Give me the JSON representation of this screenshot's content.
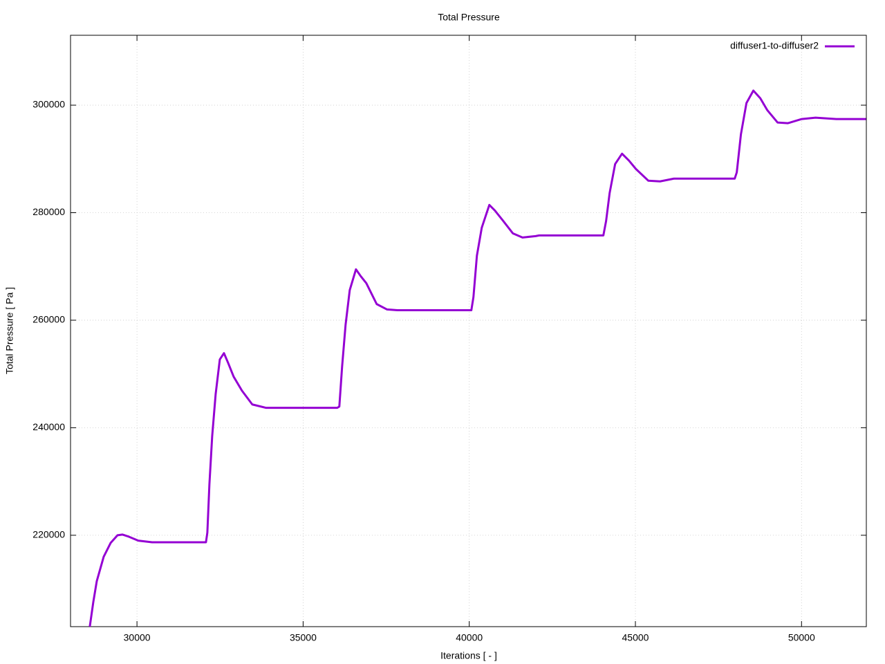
{
  "chart_data": {
    "type": "line",
    "title": "Total Pressure",
    "x_label": "Iterations [ - ]",
    "y_label": "Total Pressure [ Pa ]",
    "xlim": [
      28000,
      51950
    ],
    "ylim": [
      203000,
      313000
    ],
    "xticks": [
      30000,
      35000,
      40000,
      45000,
      50000
    ],
    "yticks": [
      220000,
      240000,
      260000,
      280000,
      300000
    ],
    "grid": true,
    "legend": "top-right",
    "x": [
      28580,
      28686,
      28790,
      28998,
      29206,
      29414,
      29560,
      29726,
      30038,
      30454,
      31286,
      32076,
      32118,
      32180,
      32264,
      32368,
      32493,
      32618,
      32743,
      32909,
      33158,
      33470,
      33886,
      36028,
      36090,
      36174,
      36278,
      36403,
      36590,
      36736,
      36902,
      37214,
      37526,
      37838,
      40063,
      40126,
      40230,
      40376,
      40604,
      40770,
      41020,
      41311,
      41602,
      41997,
      42102,
      44036,
      44119,
      44224,
      44390,
      44598,
      44806,
      45014,
      45389,
      45742,
      46158,
      47989,
      48051,
      48176,
      48342,
      48550,
      48758,
      48966,
      49278,
      49590,
      50006,
      50422,
      51046,
      51940
    ],
    "series": [
      {
        "name": "diffuser1-to-diffuser2",
        "color": "#9400d3",
        "values": [
          203000,
          207600,
          211470,
          216000,
          218560,
          220000,
          220130,
          219800,
          219000,
          218700,
          218700,
          218700,
          220500,
          229500,
          238500,
          246270,
          252700,
          253870,
          252060,
          249500,
          246900,
          244330,
          243700,
          243700,
          243940,
          251420,
          259150,
          265600,
          269460,
          268170,
          266880,
          263000,
          262000,
          261860,
          261860,
          264300,
          272000,
          277200,
          281440,
          280410,
          278480,
          276160,
          275390,
          275640,
          275770,
          275770,
          278480,
          283630,
          289050,
          290980,
          289690,
          288140,
          285950,
          285820,
          286340,
          286340,
          287500,
          294590,
          300390,
          302710,
          301290,
          299100,
          296780,
          296650,
          297420,
          297680,
          297420,
          297420
        ]
      }
    ]
  }
}
